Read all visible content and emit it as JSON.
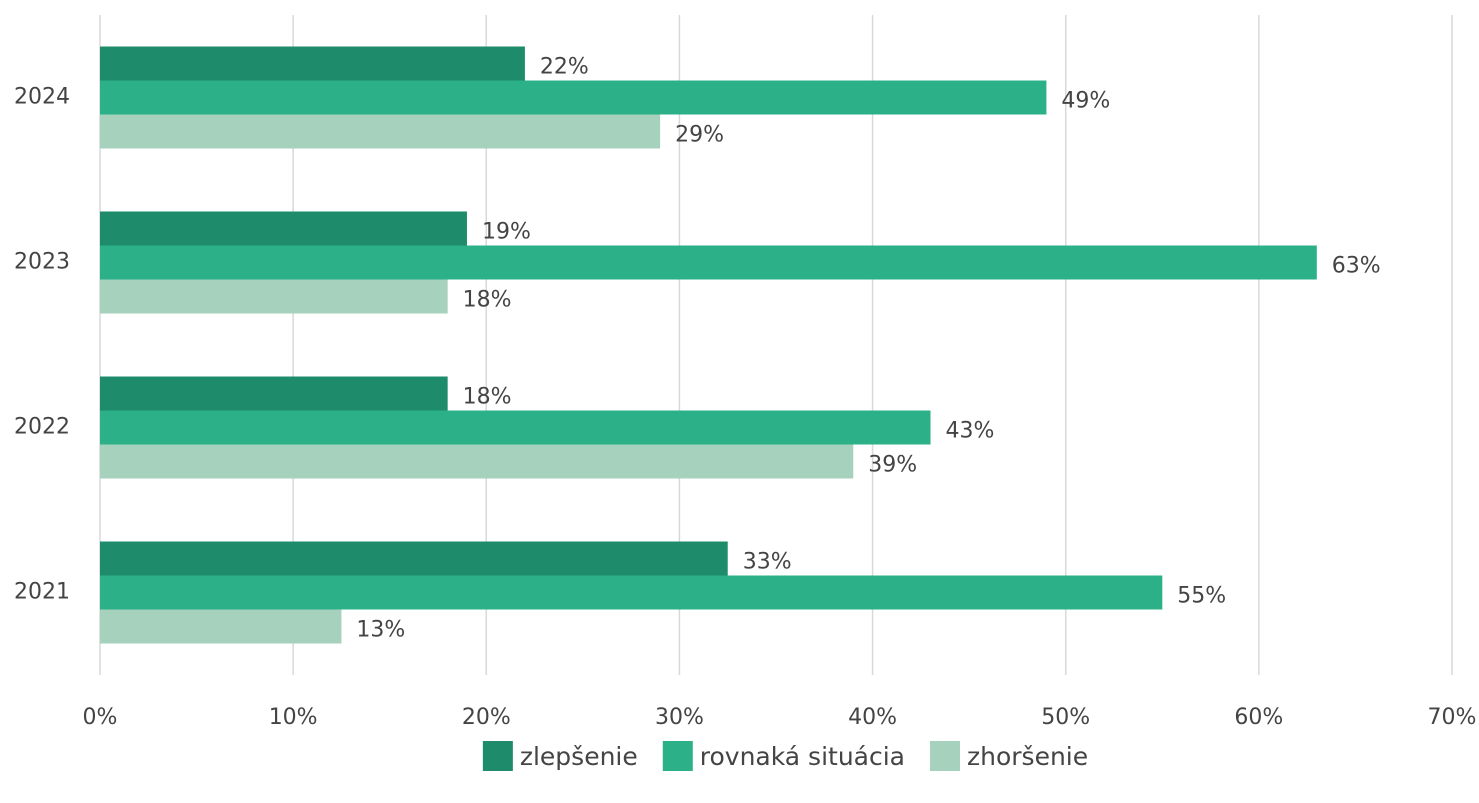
{
  "chart_data": {
    "type": "hbar",
    "categories": [
      "2024",
      "2023",
      "2022",
      "2021"
    ],
    "series": [
      {
        "name": "zlepšenie",
        "color": "#1e8c6b",
        "values": [
          22,
          19,
          18,
          32.5
        ],
        "value_labels": [
          "22%",
          "19%",
          "18%",
          "33%"
        ]
      },
      {
        "name": "rovnaká situácia",
        "color": "#2bb087",
        "values": [
          49,
          63,
          43,
          55
        ],
        "value_labels": [
          "49%",
          "63%",
          "43%",
          "55%"
        ]
      },
      {
        "name": "zhoršenie",
        "color": "#a5d1bd",
        "values": [
          29,
          18,
          39,
          12.5
        ],
        "value_labels": [
          "29%",
          "18%",
          "39%",
          "13%"
        ]
      }
    ],
    "xlim": [
      0,
      70
    ],
    "xticks": [
      {
        "value": 0,
        "label": "0%"
      },
      {
        "value": 10,
        "label": "10%"
      },
      {
        "value": 20,
        "label": "20%"
      },
      {
        "value": 30,
        "label": "30%"
      },
      {
        "value": 40,
        "label": "40%"
      },
      {
        "value": 50,
        "label": "50%"
      },
      {
        "value": 60,
        "label": "60%"
      },
      {
        "value": 70,
        "label": "70%"
      }
    ],
    "grid": true,
    "legend": "bottom"
  }
}
